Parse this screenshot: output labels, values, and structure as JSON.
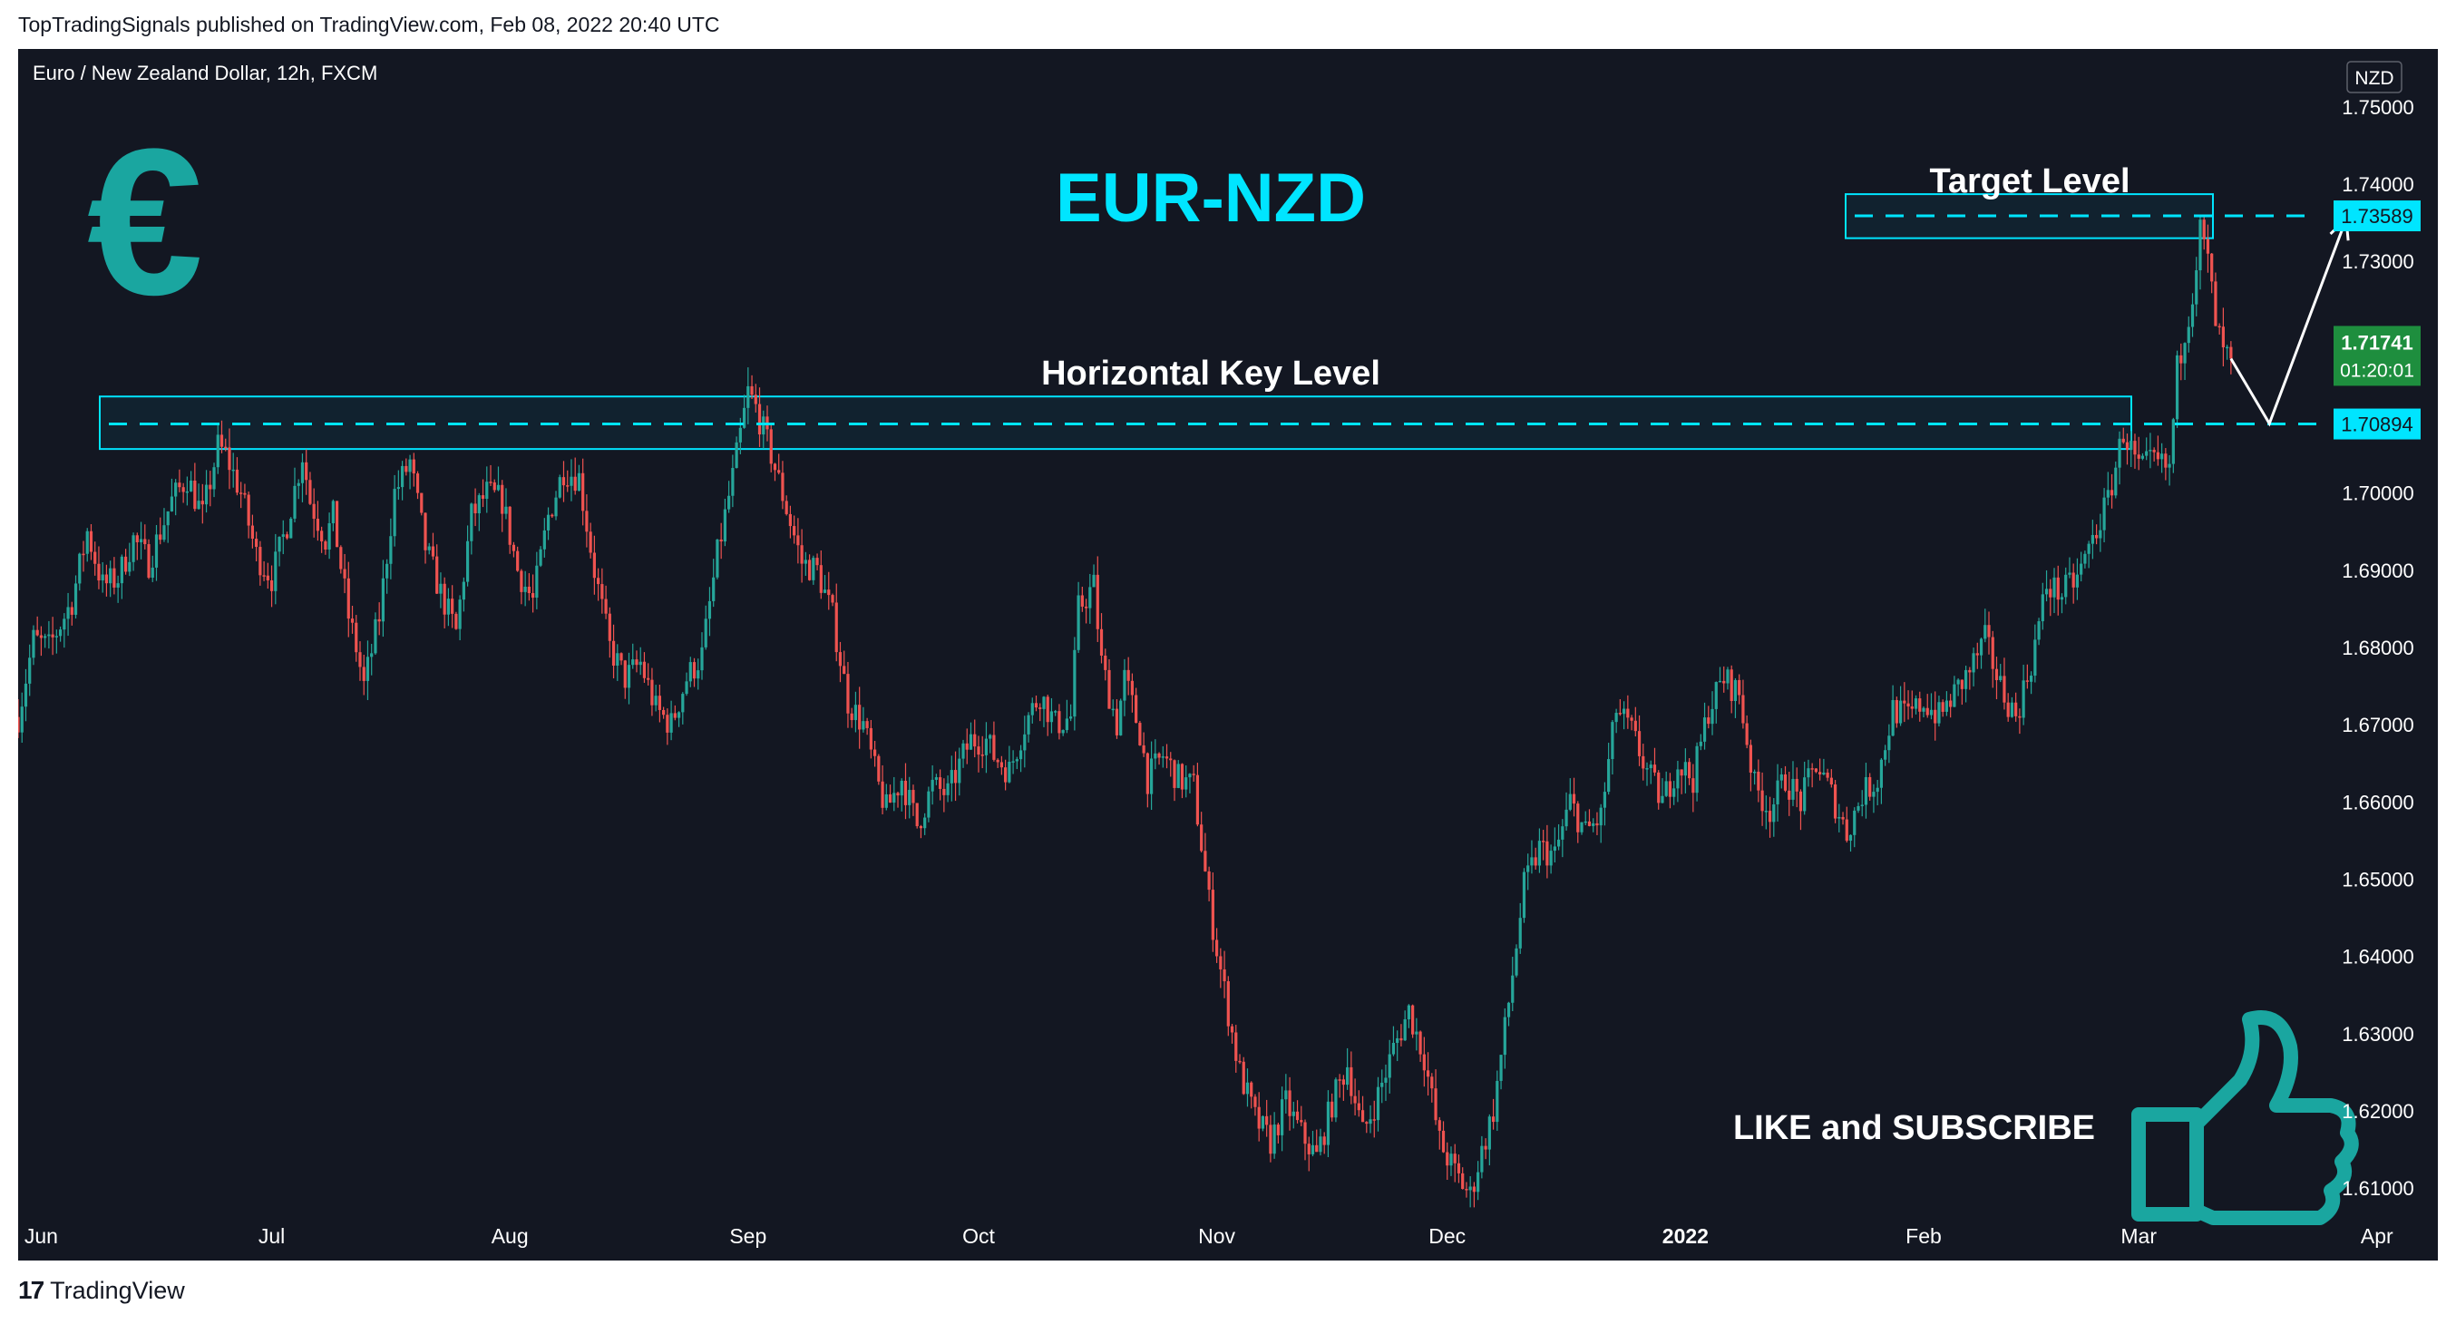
{
  "header": {
    "published_line": "TopTradingSignals published on TradingView.com, Feb 08, 2022 20:40 UTC"
  },
  "footer": {
    "brand": "TradingView",
    "logo_mark": "17"
  },
  "chart_data": {
    "type": "candlestick",
    "symbol_line": "Euro / New Zealand Dollar, 12h, FXCM",
    "title": "EUR-NZD",
    "currency_badge": "NZD",
    "y_ticks": [
      1.61,
      1.62,
      1.63,
      1.64,
      1.65,
      1.66,
      1.67,
      1.68,
      1.69,
      1.7,
      1.71,
      1.72,
      1.73,
      1.74,
      1.75
    ],
    "y_tick_labels": [
      "1.61000",
      "1.62000",
      "1.63000",
      "1.64000",
      "1.65000",
      "1.66000",
      "1.67000",
      "1.68000",
      "1.69000",
      "1.70000",
      "1.71000",
      "1.72000",
      "1.73000",
      "1.74000",
      "1.75000"
    ],
    "ylim": [
      1.6025,
      1.7575
    ],
    "x_labels": [
      "Jun",
      "Jul",
      "Aug",
      "Sep",
      "Oct",
      "Nov",
      "Dec",
      "2022",
      "Feb",
      "Mar",
      "Apr"
    ],
    "x_label_days": [
      0,
      30,
      61,
      92,
      122,
      153,
      183,
      214,
      245,
      273,
      304
    ],
    "xlim_days": [
      -3,
      298
    ],
    "price_path": [
      [
        -3,
        1.671
      ],
      [
        -1,
        1.681
      ],
      [
        1,
        1.68
      ],
      [
        4,
        1.686
      ],
      [
        6,
        1.695
      ],
      [
        8,
        1.688
      ],
      [
        10,
        1.689
      ],
      [
        12,
        1.694
      ],
      [
        14,
        1.691
      ],
      [
        17,
        1.699
      ],
      [
        19,
        1.702
      ],
      [
        21,
        1.697
      ],
      [
        23,
        1.706
      ],
      [
        24,
        1.705
      ],
      [
        26,
        1.7
      ],
      [
        28,
        1.692
      ],
      [
        30,
        1.689
      ],
      [
        32,
        1.696
      ],
      [
        34,
        1.705
      ],
      [
        35,
        1.699
      ],
      [
        37,
        1.694
      ],
      [
        38,
        1.697
      ],
      [
        40,
        1.684
      ],
      [
        41,
        1.68
      ],
      [
        42,
        1.675
      ],
      [
        44,
        1.684
      ],
      [
        46,
        1.7
      ],
      [
        48,
        1.704
      ],
      [
        50,
        1.693
      ],
      [
        52,
        1.687
      ],
      [
        54,
        1.682
      ],
      [
        56,
        1.697
      ],
      [
        58,
        1.7
      ],
      [
        60,
        1.699
      ],
      [
        62,
        1.69
      ],
      [
        64,
        1.686
      ],
      [
        66,
        1.697
      ],
      [
        68,
        1.703
      ],
      [
        70,
        1.702
      ],
      [
        72,
        1.69
      ],
      [
        74,
        1.68
      ],
      [
        76,
        1.676
      ],
      [
        78,
        1.678
      ],
      [
        80,
        1.672
      ],
      [
        82,
        1.67
      ],
      [
        84,
        1.676
      ],
      [
        86,
        1.679
      ],
      [
        88,
        1.692
      ],
      [
        90,
        1.702
      ],
      [
        92,
        1.713
      ],
      [
        93,
        1.711
      ],
      [
        95,
        1.705
      ],
      [
        97,
        1.698
      ],
      [
        99,
        1.691
      ],
      [
        101,
        1.69
      ],
      [
        103,
        1.684
      ],
      [
        105,
        1.673
      ],
      [
        107,
        1.67
      ],
      [
        109,
        1.662
      ],
      [
        110,
        1.659
      ],
      [
        112,
        1.663
      ],
      [
        114,
        1.657
      ],
      [
        116,
        1.662
      ],
      [
        118,
        1.661
      ],
      [
        120,
        1.666
      ],
      [
        121,
        1.668
      ],
      [
        123,
        1.668
      ],
      [
        124,
        1.666
      ],
      [
        126,
        1.664
      ],
      [
        128,
        1.67
      ],
      [
        130,
        1.674
      ],
      [
        132,
        1.67
      ],
      [
        134,
        1.671
      ],
      [
        135,
        1.685
      ],
      [
        137,
        1.688
      ],
      [
        138,
        1.678
      ],
      [
        140,
        1.67
      ],
      [
        141,
        1.676
      ],
      [
        143,
        1.669
      ],
      [
        144,
        1.663
      ],
      [
        146,
        1.666
      ],
      [
        148,
        1.663
      ],
      [
        150,
        1.662
      ],
      [
        152,
        1.647
      ],
      [
        153,
        1.641
      ],
      [
        155,
        1.63
      ],
      [
        156,
        1.625
      ],
      [
        158,
        1.619
      ],
      [
        160,
        1.616
      ],
      [
        162,
        1.621
      ],
      [
        164,
        1.617
      ],
      [
        166,
        1.614
      ],
      [
        168,
        1.621
      ],
      [
        170,
        1.626
      ],
      [
        172,
        1.617
      ],
      [
        174,
        1.622
      ],
      [
        176,
        1.628
      ],
      [
        178,
        1.633
      ],
      [
        180,
        1.627
      ],
      [
        182,
        1.616
      ],
      [
        184,
        1.612
      ],
      [
        186,
        1.609
      ],
      [
        187,
        1.613
      ],
      [
        189,
        1.62
      ],
      [
        191,
        1.634
      ],
      [
        193,
        1.649
      ],
      [
        195,
        1.654
      ],
      [
        197,
        1.653
      ],
      [
        199,
        1.66
      ],
      [
        201,
        1.656
      ],
      [
        203,
        1.658
      ],
      [
        205,
        1.672
      ],
      [
        207,
        1.669
      ],
      [
        209,
        1.664
      ],
      [
        211,
        1.66
      ],
      [
        213,
        1.665
      ],
      [
        215,
        1.663
      ],
      [
        217,
        1.672
      ],
      [
        219,
        1.676
      ],
      [
        221,
        1.674
      ],
      [
        223,
        1.662
      ],
      [
        225,
        1.659
      ],
      [
        227,
        1.663
      ],
      [
        229,
        1.66
      ],
      [
        231,
        1.665
      ],
      [
        233,
        1.661
      ],
      [
        235,
        1.656
      ],
      [
        237,
        1.661
      ],
      [
        239,
        1.663
      ],
      [
        241,
        1.672
      ],
      [
        243,
        1.671
      ],
      [
        245,
        1.673
      ],
      [
        247,
        1.671
      ],
      [
        249,
        1.674
      ],
      [
        251,
        1.677
      ],
      [
        253,
        1.681
      ],
      [
        255,
        1.675
      ],
      [
        257,
        1.671
      ],
      [
        259,
        1.678
      ],
      [
        261,
        1.688
      ],
      [
        263,
        1.687
      ],
      [
        265,
        1.689
      ],
      [
        267,
        1.694
      ],
      [
        269,
        1.699
      ],
      [
        271,
        1.708
      ],
      [
        273,
        1.703
      ],
      [
        275,
        1.704
      ],
      [
        277,
        1.703
      ],
      [
        278,
        1.716
      ],
      [
        280,
        1.726
      ],
      [
        281,
        1.734
      ],
      [
        282,
        1.73
      ],
      [
        283,
        1.722
      ],
      [
        284,
        1.718
      ],
      [
        285,
        1.7174
      ]
    ],
    "last_price": {
      "label": "1.71741",
      "countdown": "01:20:01",
      "value": 1.71741
    },
    "key_level": {
      "label": "1.70894",
      "value": 1.70894,
      "zone_top": 1.7125,
      "zone_bottom": 1.7057,
      "title": "Horizontal Key Level"
    },
    "target_level": {
      "label": "1.73589",
      "value": 1.73589,
      "zone_top": 1.7387,
      "zone_bottom": 1.733,
      "title": "Target Level"
    },
    "projection": [
      [
        285,
        1.7174
      ],
      [
        290,
        1.709
      ],
      [
        300,
        1.7355
      ]
    ],
    "call_to_action": "LIKE and SUBSCRIBE",
    "colors": {
      "background": "#131722",
      "up": "#26a69a",
      "down": "#ef5350",
      "axis_text": "#ffffff",
      "accent": "#00e5ff",
      "euro_icon": "#1aa6a0",
      "last_price_bg": "#1e8e3e",
      "annotation": "#ffffff"
    }
  }
}
